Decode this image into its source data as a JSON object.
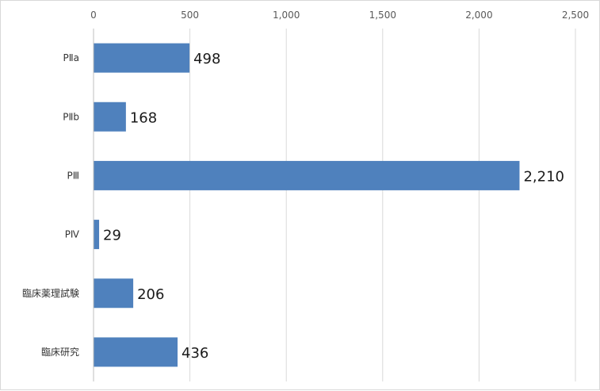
{
  "chart_data": {
    "type": "bar",
    "orientation": "horizontal",
    "categories": [
      "PⅡa",
      "PⅡb",
      "PⅢ",
      "PⅣ",
      "臨床薬理試験",
      "臨床研究"
    ],
    "values": [
      498,
      168,
      2210,
      29,
      206,
      436
    ],
    "value_labels": [
      "498",
      "168",
      "2,210",
      "29",
      "206",
      "436"
    ],
    "title": "",
    "xlabel": "",
    "ylabel": "",
    "xlim": [
      0,
      2500
    ],
    "x_ticks": [
      0,
      500,
      1000,
      1500,
      2000,
      2500
    ],
    "x_tick_labels": [
      "0",
      "500",
      "1,000",
      "1,500",
      "2,000",
      "2,500"
    ],
    "x_axis_position": "top",
    "grid": true,
    "legend": "none",
    "bar_color": "#4f81bd",
    "grid_color": "#d9d9d9"
  }
}
